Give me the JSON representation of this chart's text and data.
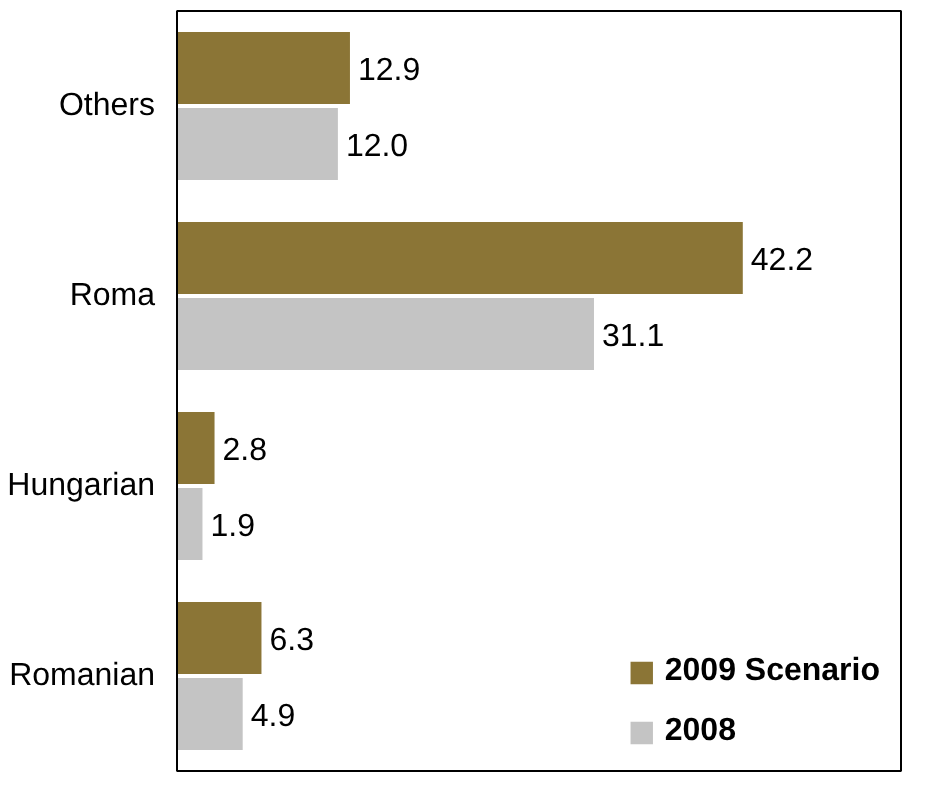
{
  "chart_data": {
    "type": "bar",
    "orientation": "horizontal",
    "categories": [
      "Others",
      "Roma",
      "Hungarian",
      "Romanian"
    ],
    "series": [
      {
        "name": "2009 Scenario",
        "color": "#8b7536",
        "values": [
          12.9,
          42.2,
          2.8,
          6.3
        ],
        "value_labels": [
          "12.9",
          "42.2",
          "2.8",
          "6.3"
        ]
      },
      {
        "name": "2008",
        "color": "#c4c4c4",
        "values": [
          12.0,
          31.1,
          1.9,
          4.9
        ],
        "value_labels": [
          "12.0",
          "31.1",
          "1.9",
          "4.9"
        ]
      }
    ],
    "xlim": [
      0,
      54
    ],
    "tick_labels": "y",
    "legend": "bottom right",
    "grid": false
  }
}
